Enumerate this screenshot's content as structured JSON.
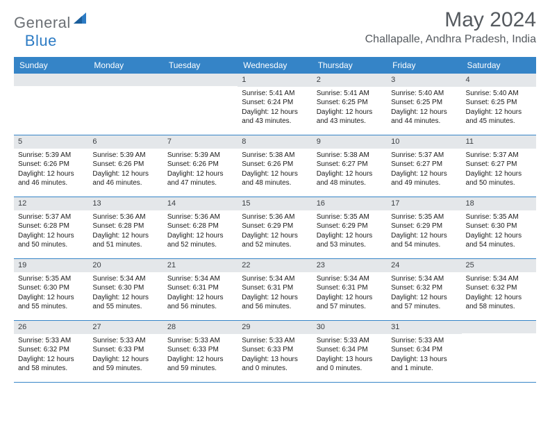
{
  "brand": {
    "general": "General",
    "blue": "Blue"
  },
  "title": "May 2024",
  "location": "Challapalle, Andhra Pradesh, India",
  "weekdays": [
    "Sunday",
    "Monday",
    "Tuesday",
    "Wednesday",
    "Thursday",
    "Friday",
    "Saturday"
  ],
  "colors": {
    "header_bg": "#3584c7",
    "header_text": "#ffffff",
    "daynum_bg": "#e4e7ea",
    "daynum_text": "#3a3e42",
    "title_text": "#555a5f",
    "logo_gray": "#6b6f74",
    "logo_blue": "#2c7bc4",
    "body_text": "#1a1a1a",
    "row_border": "#3584c7"
  },
  "weeks": [
    [
      null,
      null,
      null,
      {
        "n": "1",
        "sr": "Sunrise: 5:41 AM",
        "ss": "Sunset: 6:24 PM",
        "d1": "Daylight: 12 hours",
        "d2": "and 43 minutes."
      },
      {
        "n": "2",
        "sr": "Sunrise: 5:41 AM",
        "ss": "Sunset: 6:25 PM",
        "d1": "Daylight: 12 hours",
        "d2": "and 43 minutes."
      },
      {
        "n": "3",
        "sr": "Sunrise: 5:40 AM",
        "ss": "Sunset: 6:25 PM",
        "d1": "Daylight: 12 hours",
        "d2": "and 44 minutes."
      },
      {
        "n": "4",
        "sr": "Sunrise: 5:40 AM",
        "ss": "Sunset: 6:25 PM",
        "d1": "Daylight: 12 hours",
        "d2": "and 45 minutes."
      }
    ],
    [
      {
        "n": "5",
        "sr": "Sunrise: 5:39 AM",
        "ss": "Sunset: 6:26 PM",
        "d1": "Daylight: 12 hours",
        "d2": "and 46 minutes."
      },
      {
        "n": "6",
        "sr": "Sunrise: 5:39 AM",
        "ss": "Sunset: 6:26 PM",
        "d1": "Daylight: 12 hours",
        "d2": "and 46 minutes."
      },
      {
        "n": "7",
        "sr": "Sunrise: 5:39 AM",
        "ss": "Sunset: 6:26 PM",
        "d1": "Daylight: 12 hours",
        "d2": "and 47 minutes."
      },
      {
        "n": "8",
        "sr": "Sunrise: 5:38 AM",
        "ss": "Sunset: 6:26 PM",
        "d1": "Daylight: 12 hours",
        "d2": "and 48 minutes."
      },
      {
        "n": "9",
        "sr": "Sunrise: 5:38 AM",
        "ss": "Sunset: 6:27 PM",
        "d1": "Daylight: 12 hours",
        "d2": "and 48 minutes."
      },
      {
        "n": "10",
        "sr": "Sunrise: 5:37 AM",
        "ss": "Sunset: 6:27 PM",
        "d1": "Daylight: 12 hours",
        "d2": "and 49 minutes."
      },
      {
        "n": "11",
        "sr": "Sunrise: 5:37 AM",
        "ss": "Sunset: 6:27 PM",
        "d1": "Daylight: 12 hours",
        "d2": "and 50 minutes."
      }
    ],
    [
      {
        "n": "12",
        "sr": "Sunrise: 5:37 AM",
        "ss": "Sunset: 6:28 PM",
        "d1": "Daylight: 12 hours",
        "d2": "and 50 minutes."
      },
      {
        "n": "13",
        "sr": "Sunrise: 5:36 AM",
        "ss": "Sunset: 6:28 PM",
        "d1": "Daylight: 12 hours",
        "d2": "and 51 minutes."
      },
      {
        "n": "14",
        "sr": "Sunrise: 5:36 AM",
        "ss": "Sunset: 6:28 PM",
        "d1": "Daylight: 12 hours",
        "d2": "and 52 minutes."
      },
      {
        "n": "15",
        "sr": "Sunrise: 5:36 AM",
        "ss": "Sunset: 6:29 PM",
        "d1": "Daylight: 12 hours",
        "d2": "and 52 minutes."
      },
      {
        "n": "16",
        "sr": "Sunrise: 5:35 AM",
        "ss": "Sunset: 6:29 PM",
        "d1": "Daylight: 12 hours",
        "d2": "and 53 minutes."
      },
      {
        "n": "17",
        "sr": "Sunrise: 5:35 AM",
        "ss": "Sunset: 6:29 PM",
        "d1": "Daylight: 12 hours",
        "d2": "and 54 minutes."
      },
      {
        "n": "18",
        "sr": "Sunrise: 5:35 AM",
        "ss": "Sunset: 6:30 PM",
        "d1": "Daylight: 12 hours",
        "d2": "and 54 minutes."
      }
    ],
    [
      {
        "n": "19",
        "sr": "Sunrise: 5:35 AM",
        "ss": "Sunset: 6:30 PM",
        "d1": "Daylight: 12 hours",
        "d2": "and 55 minutes."
      },
      {
        "n": "20",
        "sr": "Sunrise: 5:34 AM",
        "ss": "Sunset: 6:30 PM",
        "d1": "Daylight: 12 hours",
        "d2": "and 55 minutes."
      },
      {
        "n": "21",
        "sr": "Sunrise: 5:34 AM",
        "ss": "Sunset: 6:31 PM",
        "d1": "Daylight: 12 hours",
        "d2": "and 56 minutes."
      },
      {
        "n": "22",
        "sr": "Sunrise: 5:34 AM",
        "ss": "Sunset: 6:31 PM",
        "d1": "Daylight: 12 hours",
        "d2": "and 56 minutes."
      },
      {
        "n": "23",
        "sr": "Sunrise: 5:34 AM",
        "ss": "Sunset: 6:31 PM",
        "d1": "Daylight: 12 hours",
        "d2": "and 57 minutes."
      },
      {
        "n": "24",
        "sr": "Sunrise: 5:34 AM",
        "ss": "Sunset: 6:32 PM",
        "d1": "Daylight: 12 hours",
        "d2": "and 57 minutes."
      },
      {
        "n": "25",
        "sr": "Sunrise: 5:34 AM",
        "ss": "Sunset: 6:32 PM",
        "d1": "Daylight: 12 hours",
        "d2": "and 58 minutes."
      }
    ],
    [
      {
        "n": "26",
        "sr": "Sunrise: 5:33 AM",
        "ss": "Sunset: 6:32 PM",
        "d1": "Daylight: 12 hours",
        "d2": "and 58 minutes."
      },
      {
        "n": "27",
        "sr": "Sunrise: 5:33 AM",
        "ss": "Sunset: 6:33 PM",
        "d1": "Daylight: 12 hours",
        "d2": "and 59 minutes."
      },
      {
        "n": "28",
        "sr": "Sunrise: 5:33 AM",
        "ss": "Sunset: 6:33 PM",
        "d1": "Daylight: 12 hours",
        "d2": "and 59 minutes."
      },
      {
        "n": "29",
        "sr": "Sunrise: 5:33 AM",
        "ss": "Sunset: 6:33 PM",
        "d1": "Daylight: 13 hours",
        "d2": "and 0 minutes."
      },
      {
        "n": "30",
        "sr": "Sunrise: 5:33 AM",
        "ss": "Sunset: 6:34 PM",
        "d1": "Daylight: 13 hours",
        "d2": "and 0 minutes."
      },
      {
        "n": "31",
        "sr": "Sunrise: 5:33 AM",
        "ss": "Sunset: 6:34 PM",
        "d1": "Daylight: 13 hours",
        "d2": "and 1 minute."
      },
      null
    ]
  ]
}
